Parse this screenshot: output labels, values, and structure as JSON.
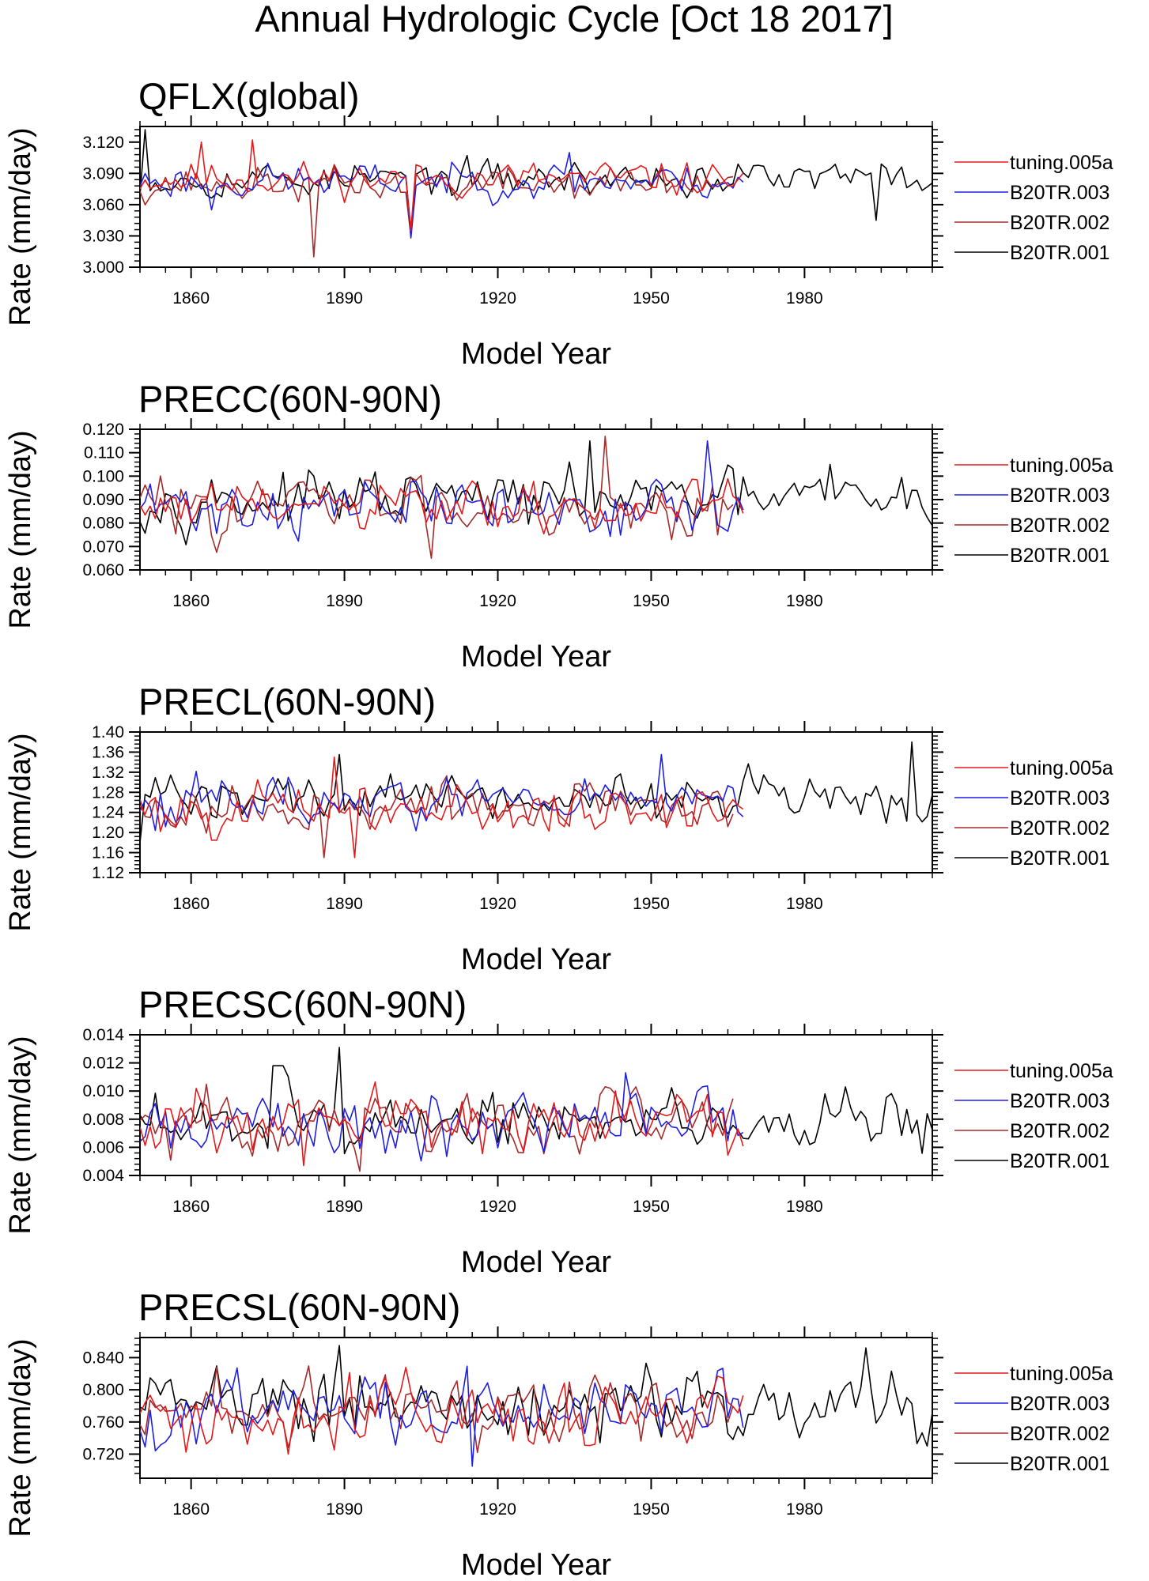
{
  "figure_title": "Annual Hydrologic Cycle [Oct 18 2017]",
  "series_colors": {
    "tuning.005a": "#e31a1c",
    "B20TR.003": "#1f1fe0",
    "B20TR.002": "#a52a2a",
    "B20TR.001": "#000000"
  },
  "chart_data": [
    {
      "type": "line",
      "title": "QFLX(global)",
      "xlabel": "Model Year",
      "ylabel": "Rate (mm/day)",
      "xlim": [
        1850,
        2005
      ],
      "ylim": [
        3.0,
        3.135
      ],
      "x_ticks": [
        1860,
        1890,
        1920,
        1950,
        1980
      ],
      "y_ticks": [
        "3.000",
        "3.030",
        "3.060",
        "3.090",
        "3.120"
      ],
      "y_tick_values": [
        3.0,
        3.03,
        3.06,
        3.09,
        3.12
      ],
      "legend_position": "right",
      "grid": false,
      "series": [
        {
          "name": "tuning.005a",
          "x_start": 1850,
          "x_end": 1968,
          "mean": 3.085,
          "amp": 0.012,
          "seed": 11,
          "notes": [
            {
              "x": 1862,
              "y": 3.12
            },
            {
              "x": 1872,
              "y": 3.122
            },
            {
              "x": 1903,
              "y": 3.035
            }
          ]
        },
        {
          "name": "B20TR.003",
          "x_start": 1850,
          "x_end": 1968,
          "mean": 3.083,
          "amp": 0.012,
          "seed": 23,
          "notes": [
            {
              "x": 1864,
              "y": 3.055
            },
            {
              "x": 1903,
              "y": 3.028
            },
            {
              "x": 1934,
              "y": 3.11
            }
          ]
        },
        {
          "name": "B20TR.002",
          "x_start": 1850,
          "x_end": 1966,
          "mean": 3.08,
          "amp": 0.012,
          "seed": 37,
          "notes": [
            {
              "x": 1884,
              "y": 3.01
            },
            {
              "x": 1903,
              "y": 3.03
            }
          ]
        },
        {
          "name": "B20TR.001",
          "x_start": 1850,
          "x_end": 2005,
          "mean": 3.085,
          "amp": 0.012,
          "seed": 53,
          "notes": [
            {
              "x": 1851,
              "y": 3.132
            },
            {
              "x": 1903,
              "y": 3.035
            },
            {
              "x": 1994,
              "y": 3.045
            }
          ]
        }
      ]
    },
    {
      "type": "line",
      "title": "PRECC(60N-90N)",
      "xlabel": "Model Year",
      "ylabel": "Rate (mm/day)",
      "xlim": [
        1850,
        2005
      ],
      "ylim": [
        0.06,
        0.12
      ],
      "x_ticks": [
        1860,
        1890,
        1920,
        1950,
        1980
      ],
      "y_ticks": [
        "0.060",
        "0.070",
        "0.080",
        "0.090",
        "0.100",
        "0.110",
        "0.120"
      ],
      "y_tick_values": [
        0.06,
        0.07,
        0.08,
        0.09,
        0.1,
        0.11,
        0.12
      ],
      "legend_position": "right",
      "grid": false,
      "series": [
        {
          "name": "tuning.005a",
          "x_start": 1850,
          "x_end": 1968,
          "mean": 0.086,
          "amp": 0.008,
          "seed": 61,
          "notes": []
        },
        {
          "name": "B20TR.003",
          "x_start": 1850,
          "x_end": 1968,
          "mean": 0.087,
          "amp": 0.009,
          "seed": 71,
          "notes": [
            {
              "x": 1961,
              "y": 0.115
            }
          ]
        },
        {
          "name": "B20TR.002",
          "x_start": 1850,
          "x_end": 1966,
          "mean": 0.088,
          "amp": 0.009,
          "seed": 83,
          "notes": [
            {
              "x": 1907,
              "y": 0.065
            },
            {
              "x": 1941,
              "y": 0.117
            }
          ]
        },
        {
          "name": "B20TR.001",
          "x_start": 1850,
          "x_end": 2005,
          "mean": 0.09,
          "amp": 0.008,
          "seed": 97,
          "notes": [
            {
              "x": 1938,
              "y": 0.115
            },
            {
              "x": 1985,
              "y": 0.105
            }
          ]
        }
      ]
    },
    {
      "type": "line",
      "title": "PRECL(60N-90N)",
      "xlabel": "Model Year",
      "ylabel": "Rate (mm/day)",
      "xlim": [
        1850,
        2005
      ],
      "ylim": [
        1.12,
        1.4
      ],
      "x_ticks": [
        1860,
        1890,
        1920,
        1950,
        1980
      ],
      "y_ticks": [
        "1.12",
        "1.16",
        "1.20",
        "1.24",
        "1.28",
        "1.32",
        "1.36",
        "1.40"
      ],
      "y_tick_values": [
        1.12,
        1.16,
        1.2,
        1.24,
        1.28,
        1.32,
        1.36,
        1.4
      ],
      "legend_position": "right",
      "grid": false,
      "series": [
        {
          "name": "tuning.005a",
          "x_start": 1850,
          "x_end": 1968,
          "mean": 1.245,
          "amp": 0.035,
          "seed": 101,
          "notes": [
            {
              "x": 1888,
              "y": 1.35
            },
            {
              "x": 1892,
              "y": 1.15
            }
          ]
        },
        {
          "name": "B20TR.003",
          "x_start": 1850,
          "x_end": 1968,
          "mean": 1.265,
          "amp": 0.035,
          "seed": 113,
          "notes": [
            {
              "x": 1952,
              "y": 1.355
            }
          ]
        },
        {
          "name": "B20TR.002",
          "x_start": 1850,
          "x_end": 1966,
          "mean": 1.25,
          "amp": 0.035,
          "seed": 127,
          "notes": [
            {
              "x": 1886,
              "y": 1.15
            }
          ]
        },
        {
          "name": "B20TR.001",
          "x_start": 1850,
          "x_end": 2005,
          "mean": 1.27,
          "amp": 0.035,
          "seed": 139,
          "notes": [
            {
              "x": 1850,
              "y": 1.18
            },
            {
              "x": 1889,
              "y": 1.355
            },
            {
              "x": 2001,
              "y": 1.38
            }
          ]
        }
      ]
    },
    {
      "type": "line",
      "title": "PRECSC(60N-90N)",
      "xlabel": "Model Year",
      "ylabel": "Rate (mm/day)",
      "xlim": [
        1850,
        2005
      ],
      "ylim": [
        0.004,
        0.014
      ],
      "x_ticks": [
        1860,
        1890,
        1920,
        1950,
        1980
      ],
      "y_ticks": [
        "0.004",
        "0.006",
        "0.008",
        "0.010",
        "0.012",
        "0.014"
      ],
      "y_tick_values": [
        0.004,
        0.006,
        0.008,
        0.01,
        0.012,
        0.014
      ],
      "legend_position": "right",
      "grid": false,
      "series": [
        {
          "name": "tuning.005a",
          "x_start": 1850,
          "x_end": 1968,
          "mean": 0.0075,
          "amp": 0.0015,
          "seed": 151,
          "notes": [
            {
              "x": 1882,
              "y": 0.0047
            }
          ]
        },
        {
          "name": "B20TR.003",
          "x_start": 1850,
          "x_end": 1968,
          "mean": 0.0078,
          "amp": 0.0015,
          "seed": 163,
          "notes": [
            {
              "x": 1945,
              "y": 0.0113
            }
          ]
        },
        {
          "name": "B20TR.002",
          "x_start": 1850,
          "x_end": 1966,
          "mean": 0.0078,
          "amp": 0.0015,
          "seed": 173,
          "notes": [
            {
              "x": 1893,
              "y": 0.0043
            }
          ]
        },
        {
          "name": "B20TR.001",
          "x_start": 1850,
          "x_end": 2005,
          "mean": 0.0078,
          "amp": 0.0015,
          "seed": 181,
          "notes": [
            {
              "x": 1876,
              "y": 0.0118
            },
            {
              "x": 1877,
              "y": 0.0118
            },
            {
              "x": 1878,
              "y": 0.0118
            },
            {
              "x": 1889,
              "y": 0.0131
            }
          ]
        }
      ]
    },
    {
      "type": "line",
      "title": "PRECSL(60N-90N)",
      "xlabel": "Model Year",
      "ylabel": "Rate (mm/day)",
      "xlim": [
        1850,
        2005
      ],
      "ylim": [
        0.69,
        0.865
      ],
      "x_ticks": [
        1860,
        1890,
        1920,
        1950,
        1980
      ],
      "y_ticks": [
        "0.720",
        "0.760",
        "0.800",
        "0.840"
      ],
      "y_tick_values": [
        0.72,
        0.76,
        0.8,
        0.84
      ],
      "legend_position": "right",
      "grid": false,
      "series": [
        {
          "name": "tuning.005a",
          "x_start": 1850,
          "x_end": 1968,
          "mean": 0.77,
          "amp": 0.03,
          "seed": 191,
          "notes": [
            {
              "x": 1879,
              "y": 0.72
            }
          ]
        },
        {
          "name": "B20TR.003",
          "x_start": 1850,
          "x_end": 1968,
          "mean": 0.78,
          "amp": 0.03,
          "seed": 199,
          "notes": [
            {
              "x": 1915,
              "y": 0.705
            }
          ]
        },
        {
          "name": "B20TR.002",
          "x_start": 1850,
          "x_end": 1966,
          "mean": 0.775,
          "amp": 0.03,
          "seed": 211,
          "notes": []
        },
        {
          "name": "B20TR.001",
          "x_start": 1850,
          "x_end": 2005,
          "mean": 0.785,
          "amp": 0.03,
          "seed": 223,
          "notes": [
            {
              "x": 1889,
              "y": 0.855
            },
            {
              "x": 1992,
              "y": 0.852
            },
            {
              "x": 2004,
              "y": 0.73
            }
          ]
        }
      ]
    }
  ]
}
